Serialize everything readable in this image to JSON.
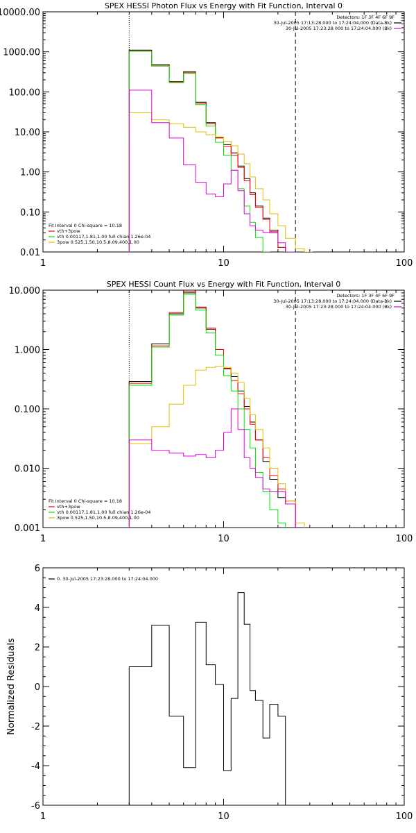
{
  "chart_data": [
    {
      "type": "line",
      "title": "SPEX HESSI Photon Flux vs Energy with Fit Function, Interval 0",
      "xlabel": "",
      "ylabel": "",
      "x_scale": "log",
      "y_scale": "log",
      "xlim": [
        1,
        100
      ],
      "ylim": [
        0.01,
        10000
      ],
      "x_ticks": [
        {
          "v": 1,
          "label": "1"
        },
        {
          "v": 10,
          "label": "10"
        },
        {
          "v": 100,
          "label": "100"
        }
      ],
      "y_ticks": [
        {
          "v": 0.01,
          "label": "0.01"
        },
        {
          "v": 0.1,
          "label": "0.10"
        },
        {
          "v": 1,
          "label": "1.00"
        },
        {
          "v": 10,
          "label": "10.00"
        },
        {
          "v": 100,
          "label": "100.00"
        },
        {
          "v": 1000,
          "label": "1000.00"
        },
        {
          "v": 10000,
          "label": "10000.00"
        }
      ],
      "vlines": [
        {
          "x": 3.0,
          "style": "dotted"
        },
        {
          "x": 25.0,
          "style": "dashed"
        }
      ],
      "edges": [
        3.0,
        4.0,
        5.0,
        6.0,
        7.0,
        8.0,
        9.0,
        10.0,
        11.0,
        12.0,
        13.0,
        14.0,
        15.0,
        16.5,
        18.0,
        20.0,
        22.0,
        25.0,
        28.0,
        31.0
      ],
      "legend_right": {
        "detectors": "Detectors: 1F 3F 4F 6F 9F",
        "entries": [
          {
            "text": "30-Jul-2005 17:13:28.000 to 17:24:04.000 (Data-Bk)",
            "color": "#000000"
          },
          {
            "text": "30-Jul-2005 17:23:28.000 to 17:24:04.000 (Bk)",
            "color": "#e000e0"
          }
        ]
      },
      "legend_left": {
        "header": "Fit Interval  0   Chi-square = 10.18",
        "entries": [
          {
            "text": "vth+3pow",
            "color": "#ff0000"
          },
          {
            "text": "vth 0.00117,1.81,1.00  full chian 1.26e-04",
            "color": "#00e000"
          },
          {
            "text": "3pow 0.525,1.50,10.5,8.09,400,1.00",
            "color": "#e0c000"
          }
        ]
      },
      "series": [
        {
          "color": "#000000",
          "values": [
            1100,
            480,
            180,
            320,
            55,
            17,
            7.2,
            4.8,
            3.0,
            1.4,
            0.68,
            0.3,
            0.14,
            0.07,
            0.035,
            0.013
          ]
        },
        {
          "color": "#ff0000",
          "values": [
            1050,
            450,
            175,
            300,
            52,
            16,
            7.0,
            4.3,
            2.6,
            1.3,
            0.6,
            0.27,
            0.13,
            0.065,
            0.032,
            0.013
          ]
        },
        {
          "color": "#00e000",
          "values": [
            1040,
            440,
            170,
            290,
            48,
            14,
            5.5,
            2.6,
            1.1,
            0.38,
            0.14,
            0.055,
            0.023,
            0.01
          ]
        },
        {
          "color": "#e0c000",
          "values": [
            30,
            20,
            16,
            13,
            10,
            8.5,
            7.5,
            5.8,
            4.5,
            2.8,
            1.6,
            0.75,
            0.38,
            0.2,
            0.09,
            0.045,
            0.022,
            0.012,
            0.01
          ]
        },
        {
          "color": "#e000e0",
          "values": [
            110,
            17,
            7,
            1.5,
            0.55,
            0.28,
            0.24,
            0.5,
            1.1,
            0.34,
            0.09,
            0.045,
            0.035,
            0.031,
            0.03,
            0.017,
            0.01
          ]
        }
      ]
    },
    {
      "type": "line",
      "title": "SPEX HESSI Count Flux vs Energy with Fit Function, Interval 0",
      "xlabel": "",
      "ylabel": "",
      "x_scale": "log",
      "y_scale": "log",
      "xlim": [
        1,
        100
      ],
      "ylim": [
        0.001,
        10
      ],
      "x_ticks": [
        {
          "v": 1,
          "label": "1"
        },
        {
          "v": 10,
          "label": "10"
        },
        {
          "v": 100,
          "label": "100"
        }
      ],
      "y_ticks": [
        {
          "v": 0.001,
          "label": "0.001"
        },
        {
          "v": 0.01,
          "label": "0.010"
        },
        {
          "v": 0.1,
          "label": "0.100"
        },
        {
          "v": 1,
          "label": "1.000"
        },
        {
          "v": 10,
          "label": "10.000"
        }
      ],
      "vlines": [
        {
          "x": 3.0,
          "style": "dotted"
        },
        {
          "x": 25.0,
          "style": "dashed"
        }
      ],
      "edges": [
        3.0,
        4.0,
        5.0,
        6.0,
        7.0,
        8.0,
        9.0,
        10.0,
        11.0,
        12.0,
        13.0,
        14.0,
        15.0,
        16.5,
        18.0,
        20.0,
        22.0,
        25.0,
        28.0,
        31.0
      ],
      "legend_right": {
        "detectors": "Detectors: 1F 3F 4F 6F 9F",
        "entries": [
          {
            "text": "30-Jul-2005 17:13:28.000 to 17:24:04.000 (Data-Bk)",
            "color": "#000000"
          },
          {
            "text": "30-Jul-2005 17:23:28.000 to 17:24:04.000 (Bk)",
            "color": "#e000e0"
          }
        ]
      },
      "legend_left": {
        "header": "Fit Interval  0   Chi-square = 10.18",
        "entries": [
          {
            "text": "vth+3pow",
            "color": "#ff0000"
          },
          {
            "text": "vth 0.00117,1.81,1.00  full chian 1.26e-04",
            "color": "#00e000"
          },
          {
            "text": "3pow 0.525,1.50,10.5,8.09,400,1.00",
            "color": "#e0c000"
          }
        ]
      },
      "series": [
        {
          "color": "#000000",
          "values": [
            0.29,
            1.25,
            4.0,
            9.0,
            5.0,
            2.2,
            1.0,
            0.48,
            0.35,
            0.2,
            0.11,
            0.06,
            0.03,
            0.013,
            0.0065,
            0.0032,
            0.0025
          ]
        },
        {
          "color": "#ff0000",
          "values": [
            0.27,
            1.15,
            4.2,
            9.5,
            5.2,
            2.3,
            1.0,
            0.47,
            0.3,
            0.18,
            0.1,
            0.055,
            0.03,
            0.015,
            0.0075,
            0.0045,
            0.0028
          ]
        },
        {
          "color": "#00e000",
          "values": [
            0.25,
            1.1,
            3.8,
            8.5,
            4.6,
            1.9,
            0.8,
            0.36,
            0.2,
            0.1,
            0.045,
            0.022,
            0.0085,
            0.004,
            0.002,
            0.0012
          ]
        },
        {
          "color": "#e0c000",
          "values": [
            0.026,
            0.05,
            0.12,
            0.25,
            0.45,
            0.5,
            0.52,
            0.5,
            0.4,
            0.28,
            0.15,
            0.08,
            0.045,
            0.022,
            0.01,
            0.0055,
            0.0028,
            0.0012
          ]
        },
        {
          "color": "#e000e0",
          "values": [
            0.03,
            0.02,
            0.018,
            0.016,
            0.017,
            0.015,
            0.02,
            0.04,
            0.1,
            0.045,
            0.015,
            0.01,
            0.007,
            0.0045,
            0.004,
            0.004,
            0.0025
          ]
        }
      ]
    },
    {
      "type": "line",
      "title": "",
      "xlabel": "",
      "ylabel": "Normalized Residuals",
      "x_scale": "log",
      "y_scale": "linear",
      "xlim": [
        1,
        100
      ],
      "ylim": [
        -6,
        6
      ],
      "x_ticks": [
        {
          "v": 1,
          "label": "1"
        },
        {
          "v": 10,
          "label": "10"
        },
        {
          "v": 100,
          "label": "100"
        }
      ],
      "y_ticks": [
        {
          "v": -6,
          "label": "-6"
        },
        {
          "v": -4,
          "label": "-4"
        },
        {
          "v": -2,
          "label": "-2"
        },
        {
          "v": 0,
          "label": "0"
        },
        {
          "v": 2,
          "label": "2"
        },
        {
          "v": 4,
          "label": "4"
        },
        {
          "v": 6,
          "label": "6"
        }
      ],
      "legend_left": {
        "header": "",
        "entries": [
          {
            "text": "0. 30-Jul-2005 17:23:28.000 to 17:24:04.000",
            "color": "#000000"
          }
        ]
      },
      "edges": [
        3.0,
        4.0,
        5.0,
        6.0,
        7.0,
        8.0,
        9.0,
        10.0,
        11.0,
        12.0,
        13.0,
        14.0,
        15.0,
        16.5,
        18.0,
        20.0,
        22.0,
        25.0
      ],
      "series": [
        {
          "color": "#000000",
          "values": [
            1.0,
            3.1,
            -1.5,
            -4.1,
            3.25,
            1.1,
            0.1,
            -4.25,
            -0.6,
            4.75,
            3.15,
            -0.2,
            -0.7,
            -2.6,
            -0.9,
            -1.5,
            -6.0
          ]
        }
      ]
    }
  ]
}
